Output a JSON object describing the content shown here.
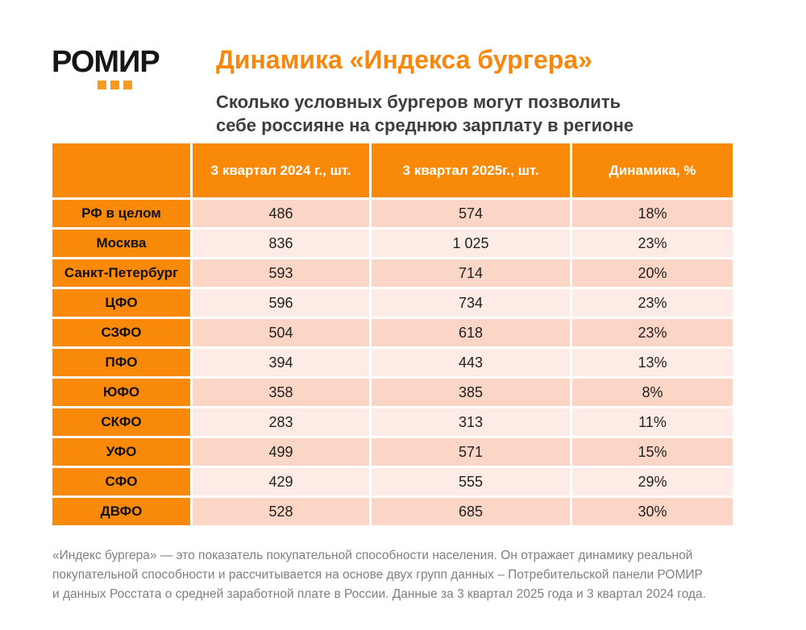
{
  "logo": {
    "text": "РОМИР",
    "dots_color": "#F89B1C"
  },
  "header": {
    "title": "Динамика «Индекса бургера»",
    "subtitle_line1": "Сколько условных бургеров могут позволить",
    "subtitle_line2": "себе россияне на среднюю зарплату в регионе"
  },
  "colors": {
    "accent_orange": "#F8870D",
    "table_orange": "#F98908",
    "row_dark_pink": "#FBD5C5",
    "row_light_pink": "#FDECE6",
    "subtitle_gray": "#3E3E3E",
    "footer_gray": "#7F7F7F"
  },
  "table": {
    "columns": [
      "",
      "3 квартал 2024 г., шт.",
      "3 квартал 2025г., шт.",
      "Динамика, %"
    ],
    "rows": [
      [
        "РФ в целом",
        "486",
        "574",
        "18%"
      ],
      [
        "Москва",
        "836",
        "1 025",
        "23%"
      ],
      [
        "Санкт-Петербург",
        "593",
        "714",
        "20%"
      ],
      [
        "ЦФО",
        "596",
        "734",
        "23%"
      ],
      [
        "СЗФО",
        "504",
        "618",
        "23%"
      ],
      [
        "ПФО",
        "394",
        "443",
        "13%"
      ],
      [
        "ЮФО",
        "358",
        "385",
        "8%"
      ],
      [
        "СКФО",
        "283",
        "313",
        "11%"
      ],
      [
        "УФО",
        "499",
        "571",
        "15%"
      ],
      [
        "СФО",
        "429",
        "555",
        "29%"
      ],
      [
        "ДВФО",
        "528",
        "685",
        "30%"
      ]
    ]
  },
  "chart_data": {
    "type": "table",
    "title": "Динамика «Индекса бургера»",
    "subtitle": "Сколько условных бургеров могут позволить себе россияне на среднюю зарплату в регионе",
    "categories": [
      "РФ в целом",
      "Москва",
      "Санкт-Петербург",
      "ЦФО",
      "СЗФО",
      "ПФО",
      "ЮФО",
      "СКФО",
      "УФО",
      "СФО",
      "ДВФО"
    ],
    "series": [
      {
        "name": "3 квартал 2024 г., шт.",
        "values": [
          486,
          836,
          593,
          596,
          504,
          394,
          358,
          283,
          499,
          429,
          528
        ]
      },
      {
        "name": "3 квартал 2025г., шт.",
        "values": [
          574,
          1025,
          714,
          734,
          618,
          443,
          385,
          313,
          571,
          555,
          685
        ]
      },
      {
        "name": "Динамика, %",
        "values": [
          18,
          23,
          20,
          23,
          23,
          13,
          8,
          11,
          15,
          29,
          30
        ]
      }
    ]
  },
  "footer": {
    "line1": "«Индекс бургера» — это показатель покупательной способности населения. Он отражает динамику реальной",
    "line2": "покупательной способности и рассчитывается на основе двух групп данных – Потребительской панели РОМИР",
    "line3": "и данных Росстата о средней заработной плате в России. Данные за 3 квартал 2025 года и 3 квартал 2024 года."
  }
}
